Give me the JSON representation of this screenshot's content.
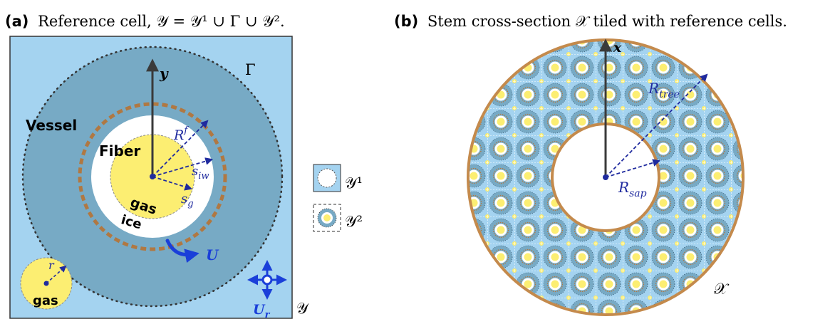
{
  "panel_a": {
    "tag": "(a)",
    "caption": "Reference cell, 𝒴 = 𝒴¹ ∪ Γ ∪ 𝒴².",
    "labels": {
      "vessel": "Vessel",
      "fiber": "Fiber",
      "gas_center": "gas",
      "ice": "ice",
      "gas_corner": "gas",
      "gamma": "Γ",
      "y_axis": "y",
      "r_f_base": "R",
      "r_f_sup": "f",
      "s_iw_base": "s",
      "s_iw_sub": "iw",
      "s_g_base": "s",
      "s_g_sub": "g",
      "r_small": "r",
      "u_velocity": "U",
      "ur_base": "U",
      "ur_sub": "r",
      "cell_label": "𝒴"
    }
  },
  "legend": {
    "y1": "𝒴¹",
    "y2": "𝒴²"
  },
  "panel_b": {
    "tag": "(b)",
    "caption": "Stem cross-section 𝒳 tiled with reference cells.",
    "labels": {
      "x_axis": "x",
      "r_tree_base": "R",
      "r_tree_sub": "tree",
      "r_sap_base": "R",
      "r_sap_sub": "sap",
      "domain_label": "𝒳"
    }
  },
  "colors": {
    "outer_blue": "#a4d3f0",
    "vessel_blue": "#77aac5",
    "fiber_yellow": "#fcee72",
    "ice_white": "#ffffff",
    "interface_brown": "#b07842",
    "vector_navy": "#1f2a9e",
    "velocity_blue": "#1a3fd9",
    "axis_gray": "#3a3a3a",
    "tree_border": "#c48a4c"
  }
}
